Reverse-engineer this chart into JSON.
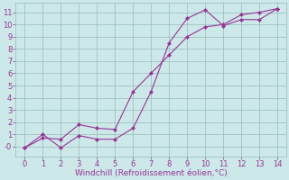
{
  "xlabel": "Windchill (Refroidissement éolien,°C)",
  "line1_x": [
    0,
    1,
    2,
    3,
    4,
    5,
    6,
    7,
    8,
    9,
    10,
    11,
    12,
    13,
    14
  ],
  "line1_y": [
    -0.1,
    1.0,
    -0.1,
    0.9,
    0.6,
    0.6,
    1.5,
    4.5,
    8.5,
    10.5,
    11.2,
    9.9,
    10.4,
    10.4,
    11.3
  ],
  "line2_x": [
    0,
    1,
    2,
    3,
    4,
    5,
    6,
    7,
    8,
    9,
    10,
    11,
    12,
    13,
    14
  ],
  "line2_y": [
    -0.1,
    0.7,
    0.6,
    1.8,
    1.5,
    1.4,
    4.5,
    6.0,
    7.5,
    9.0,
    9.8,
    10.0,
    10.8,
    11.0,
    11.3
  ],
  "line_color": "#993399",
  "bg_color": "#cce8e8",
  "grid_color": "#99bbbb",
  "xlim": [
    -0.5,
    14.5
  ],
  "ylim": [
    -0.8,
    11.8
  ],
  "xticks": [
    0,
    1,
    2,
    3,
    4,
    5,
    6,
    7,
    8,
    9,
    10,
    11,
    12,
    13,
    14
  ],
  "yticks": [
    0,
    1,
    2,
    3,
    4,
    5,
    6,
    7,
    8,
    9,
    10,
    11
  ],
  "tick_fontsize": 6,
  "xlabel_fontsize": 6.5,
  "marker": "D",
  "markersize": 2.0
}
